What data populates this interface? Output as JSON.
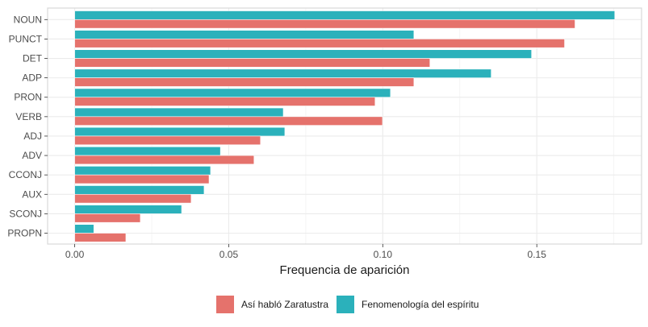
{
  "chart_data": {
    "type": "bar",
    "orientation": "horizontal",
    "title": "",
    "xlabel": "Frequencia de aparición",
    "ylabel": "",
    "xlim": [
      -0.0088,
      0.184
    ],
    "xticks": [
      0.0,
      0.05,
      0.1,
      0.15
    ],
    "xtick_labels": [
      "0.00",
      "0.05",
      "0.10",
      "0.15"
    ],
    "grid": true,
    "legend_position": "bottom",
    "categories": [
      "NOUN",
      "PUNCT",
      "DET",
      "ADP",
      "PRON",
      "VERB",
      "ADJ",
      "ADV",
      "CCONJ",
      "AUX",
      "SCONJ",
      "PROPN"
    ],
    "series": [
      {
        "name": "Fenomenología del espíritu",
        "color": "#2BB1BB",
        "values": [
          0.1753,
          0.1101,
          0.1483,
          0.1352,
          0.1025,
          0.0677,
          0.0682,
          0.0473,
          0.0441,
          0.042,
          0.0347,
          0.0062
        ]
      },
      {
        "name": "Así habló Zaratustra",
        "color": "#E5726C",
        "values": [
          0.1624,
          0.159,
          0.1153,
          0.1101,
          0.0975,
          0.0999,
          0.0603,
          0.0582,
          0.0436,
          0.0378,
          0.0213,
          0.0166
        ]
      }
    ],
    "legend": [
      {
        "label": "Así habló Zaratustra",
        "color": "#E5726C"
      },
      {
        "label": "Fenomenología del espíritu",
        "color": "#2BB1BB"
      }
    ]
  }
}
